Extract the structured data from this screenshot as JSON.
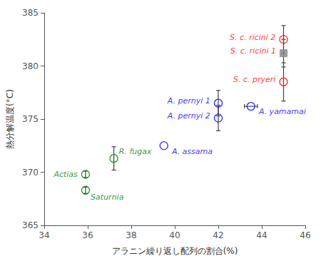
{
  "chart_data": {
    "type": "scatter",
    "xlabel": "アラニン繰り返し配列の割合(%)",
    "ylabel": "熱分解温度(°C)",
    "xlim": [
      34,
      46
    ],
    "ylim": [
      365,
      385
    ],
    "xticks": [
      34,
      36,
      38,
      40,
      42,
      44,
      46
    ],
    "yticks": [
      365,
      370,
      375,
      380,
      385
    ],
    "grid": false,
    "error_color": "#444444",
    "points": [
      {
        "label": "S. c. ricini 2",
        "x": 45.0,
        "y": 382.5,
        "xerr": 0.0,
        "yerr": 1.3,
        "color": "red",
        "marker": "open_circle",
        "label_color": "red"
      },
      {
        "label": "S. c. ricini 1",
        "x": 45.0,
        "y": 381.2,
        "xerr": 0.0,
        "yerr": 1.3,
        "color": "#888888",
        "marker": "square",
        "label_color": "red"
      },
      {
        "label": "S. c. pryeri",
        "x": 45.0,
        "y": 378.5,
        "xerr": 0.0,
        "yerr": 1.8,
        "color": "red",
        "marker": "open_circle",
        "label_color": "red"
      },
      {
        "label": "A. pernyi 1",
        "x": 42.0,
        "y": 376.5,
        "xerr": 0.0,
        "yerr": 1.2,
        "color": "blue",
        "marker": "open_circle",
        "label_color": "blue"
      },
      {
        "label": "A. pernyi 2",
        "x": 42.0,
        "y": 375.1,
        "xerr": 0.0,
        "yerr": 1.2,
        "color": "blue",
        "marker": "open_circle",
        "label_color": "blue"
      },
      {
        "label": "A. yamamai",
        "x": 43.5,
        "y": 376.2,
        "xerr": 0.3,
        "yerr": 0.0,
        "color": "blue",
        "marker": "open_circle",
        "label_color": "blue"
      },
      {
        "label": "A. assama",
        "x": 39.5,
        "y": 372.5,
        "xerr": 0.0,
        "yerr": 0.0,
        "color": "blue",
        "marker": "open_circle",
        "label_color": "blue"
      },
      {
        "label": "R. fugax",
        "x": 37.2,
        "y": 371.3,
        "xerr": 0.0,
        "yerr": 1.1,
        "color": "green",
        "marker": "open_circle",
        "label_color": "green"
      },
      {
        "label": "Actias",
        "x": 35.9,
        "y": 369.8,
        "xerr": 0.0,
        "yerr": 0.3,
        "color": "green",
        "marker": "open_circle",
        "label_color": "green"
      },
      {
        "label": "Saturnia",
        "x": 35.9,
        "y": 368.3,
        "xerr": 0.0,
        "yerr": 0.3,
        "color": "green",
        "marker": "open_circle",
        "label_color": "green"
      }
    ]
  }
}
